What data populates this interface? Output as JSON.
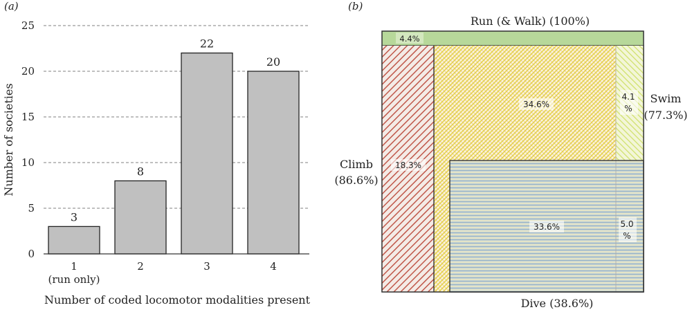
{
  "panel_a_label": "(a)",
  "panel_b_label": "(b)",
  "chart_data": [
    {
      "type": "bar",
      "panel": "(a)",
      "categories": [
        "1",
        "2",
        "3",
        "4"
      ],
      "category_sublabels": [
        "(run only)",
        "",
        "",
        ""
      ],
      "values": [
        3,
        8,
        22,
        20
      ],
      "data_labels": [
        "3",
        "8",
        "22",
        "20"
      ],
      "xlabel": "Number of coded locomotor modalities present",
      "ylabel": "Number of societies",
      "ylim": [
        0,
        25
      ],
      "yticks": [
        0,
        5,
        10,
        15,
        20,
        25
      ],
      "ytick_labels": [
        "0",
        "5",
        "10",
        "15",
        "20",
        "25"
      ],
      "grid": "horizontal dashed",
      "bar_color": "#c0c0c0"
    },
    {
      "type": "area",
      "panel": "(b)",
      "description_kind": "area-proportional overlap diagram",
      "sets": [
        {
          "name": "Run (& Walk) (100%)",
          "percent": 100,
          "color": "#b7d89a"
        },
        {
          "name": "Climb (86.6%)",
          "percent": 86.6,
          "color": "#c0584a"
        },
        {
          "name": "Swim (77.3%)",
          "percent": 77.3,
          "color": "#e8d84a"
        },
        {
          "name": "Dive (38.6%)",
          "percent": 38.6,
          "color": "#9ab4c4"
        }
      ],
      "regions": [
        {
          "label": "4.4%",
          "value": 4.4,
          "sets": [
            "Run"
          ]
        },
        {
          "label": "18.3%",
          "value": 18.3,
          "sets": [
            "Run",
            "Climb"
          ]
        },
        {
          "label": "34.6%",
          "value": 34.6,
          "sets": [
            "Run",
            "Climb",
            "Swim"
          ]
        },
        {
          "label": "4.1 %",
          "value": 4.1,
          "sets": [
            "Run",
            "Swim"
          ]
        },
        {
          "label": "33.6%",
          "value": 33.6,
          "sets": [
            "Run",
            "Climb",
            "Swim",
            "Dive"
          ]
        },
        {
          "label": "5.0 %",
          "value": 5.0,
          "sets": [
            "Run",
            "Swim",
            "Dive"
          ]
        }
      ]
    }
  ],
  "venn_labels": {
    "run": "Run (& Walk) (100%)",
    "climb_name": "Climb",
    "climb_pct": "(86.6%)",
    "swim_name": "Swim",
    "swim_pct": "(77.3%)",
    "dive": "Dive (38.6%)",
    "region_run_only": "4.4%",
    "region_climb": "18.3%",
    "region_swim_climb": "34.6%",
    "region_swim_only_1": "4.1",
    "region_swim_only_2": "%",
    "region_dive_all": "33.6%",
    "region_dive_swim_1": "5.0",
    "region_dive_swim_2": "%"
  }
}
